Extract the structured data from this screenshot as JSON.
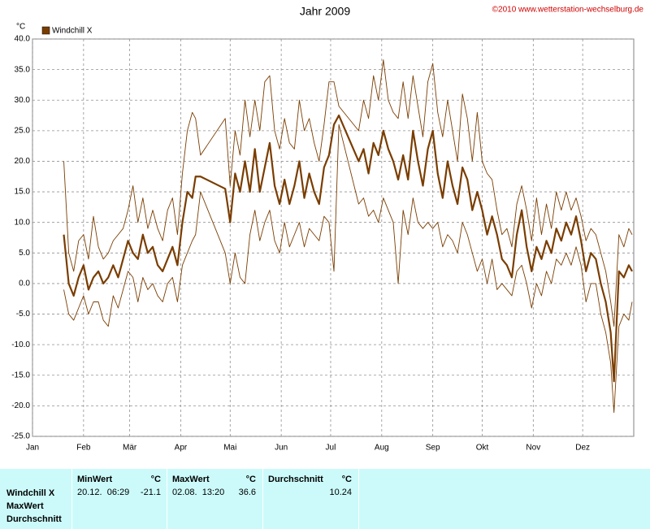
{
  "chart_data": {
    "type": "line",
    "title": "Jahr 2009",
    "copyright": "©2010 www.wetterstation-wechselburg.de",
    "y_unit": "°C",
    "legend": "top-left",
    "grid": true,
    "xlim": [
      0,
      365
    ],
    "xticks": [
      {
        "value": 0,
        "label": "Jan"
      },
      {
        "value": 31,
        "label": "Feb"
      },
      {
        "value": 59,
        "label": "Mär"
      },
      {
        "value": 90,
        "label": "Apr"
      },
      {
        "value": 120,
        "label": "Mai"
      },
      {
        "value": 151,
        "label": "Jun"
      },
      {
        "value": 181,
        "label": "Jul"
      },
      {
        "value": 212,
        "label": "Aug"
      },
      {
        "value": 243,
        "label": "Sep"
      },
      {
        "value": 273,
        "label": "Okt"
      },
      {
        "value": 304,
        "label": "Nov"
      },
      {
        "value": 334,
        "label": "Dez"
      }
    ],
    "ylim": [
      -25,
      40
    ],
    "yticks": [
      {
        "value": -25,
        "label": "-25.0"
      },
      {
        "value": -20,
        "label": "-20.0"
      },
      {
        "value": -15,
        "label": "-15.0"
      },
      {
        "value": -10,
        "label": "-10.0"
      },
      {
        "value": -5,
        "label": "-5.0"
      },
      {
        "value": 0,
        "label": "0.0"
      },
      {
        "value": 5,
        "label": "5.0"
      },
      {
        "value": 10,
        "label": "10.0"
      },
      {
        "value": 15,
        "label": "15.0"
      },
      {
        "value": 20,
        "label": "20.0"
      },
      {
        "value": 25,
        "label": "25.0"
      },
      {
        "value": 30,
        "label": "30.0"
      },
      {
        "value": 35,
        "label": "35.0"
      },
      {
        "value": 40,
        "label": "40.0"
      }
    ],
    "x": [
      19,
      22,
      25,
      28,
      31,
      34,
      37,
      40,
      43,
      46,
      49,
      52,
      55,
      58,
      61,
      64,
      67,
      70,
      73,
      76,
      79,
      82,
      85,
      88,
      91,
      94,
      97,
      99,
      102,
      117,
      120,
      123,
      126,
      129,
      132,
      135,
      138,
      141,
      144,
      147,
      150,
      153,
      156,
      159,
      162,
      165,
      168,
      171,
      174,
      177,
      180,
      183,
      186,
      198,
      201,
      204,
      207,
      210,
      213,
      216,
      219,
      222,
      225,
      228,
      231,
      234,
      237,
      240,
      243,
      246,
      249,
      252,
      255,
      258,
      261,
      264,
      267,
      270,
      273,
      276,
      279,
      282,
      285,
      288,
      291,
      294,
      297,
      300,
      303,
      306,
      309,
      312,
      315,
      318,
      321,
      324,
      327,
      330,
      333,
      336,
      339,
      342,
      345,
      348,
      351,
      353,
      356,
      359,
      362,
      364
    ],
    "series": [
      {
        "name": "Windchill X",
        "color": "#7a3d00",
        "width": 2.2,
        "values": [
          8,
          0,
          -2,
          1,
          3,
          -1,
          1,
          2,
          0,
          1,
          3,
          1,
          4,
          7,
          5,
          4,
          8,
          5,
          6,
          3,
          2,
          4,
          6,
          3,
          10,
          15,
          14,
          17.5,
          17.5,
          15.5,
          10,
          18,
          15,
          20,
          15,
          22,
          15,
          19,
          23,
          16,
          13,
          17,
          13,
          16,
          20,
          14,
          18,
          15,
          13,
          19,
          21,
          26,
          27.5,
          20,
          22,
          18,
          23,
          21,
          25,
          22,
          20,
          17,
          21,
          17,
          25,
          20,
          16,
          22,
          25,
          18,
          14,
          20,
          16,
          13,
          19,
          17,
          12,
          15,
          12,
          8,
          11,
          8,
          4,
          3,
          1,
          8,
          12,
          6,
          2,
          6,
          4,
          7,
          5,
          9,
          7,
          10,
          8,
          11,
          7,
          2,
          5,
          4,
          0,
          -3,
          -8,
          -16,
          2,
          1,
          3,
          2
        ]
      },
      {
        "color": "#7a3d00",
        "width": 0.9,
        "values": [
          20,
          5,
          2,
          7,
          8,
          4,
          11,
          6,
          4,
          5,
          7,
          8,
          9,
          12,
          16,
          10,
          14,
          9,
          12,
          9,
          7,
          12,
          14,
          8,
          18,
          25,
          28,
          27,
          21,
          27,
          16,
          25,
          21,
          30,
          24,
          30,
          25,
          33,
          34,
          25,
          22,
          27,
          23,
          22,
          30,
          25,
          27,
          23,
          20,
          26,
          33,
          33,
          29,
          25,
          30,
          27,
          34,
          30,
          36.6,
          30,
          28,
          27,
          33,
          27,
          34,
          29,
          24,
          33,
          36,
          28,
          24,
          30,
          25,
          20,
          31,
          27,
          20,
          28,
          20,
          18,
          17,
          12,
          8,
          9,
          6,
          13,
          16,
          12,
          7,
          14,
          8,
          13,
          9,
          15,
          12,
          15,
          12,
          14,
          11,
          7,
          9,
          8,
          5,
          2,
          -3,
          -7,
          8,
          6,
          9,
          8
        ]
      },
      {
        "color": "#7a3d00",
        "width": 0.9,
        "values": [
          -1,
          -5,
          -6,
          -4,
          -2,
          -5,
          -3,
          -3,
          -6,
          -7,
          -2,
          -4,
          -1,
          2,
          1,
          -3,
          1,
          -1,
          0,
          -2,
          -3,
          0,
          1,
          -3,
          3,
          5,
          7,
          8,
          15,
          5,
          0,
          5,
          1,
          0,
          8,
          12,
          7,
          10,
          12,
          7,
          5,
          10,
          6,
          8,
          10,
          6,
          9,
          8,
          7,
          11,
          10,
          2,
          26,
          13,
          14,
          11,
          12,
          10,
          14,
          12,
          10,
          0,
          12,
          8,
          14,
          10,
          9,
          10,
          9,
          10,
          6,
          8,
          7,
          5,
          10,
          8,
          5,
          2,
          4,
          0,
          4,
          -1,
          0,
          -1,
          -2,
          2,
          3,
          0,
          -4,
          0,
          -2,
          2,
          0,
          4,
          3,
          5,
          3,
          6,
          3,
          -3,
          0,
          0,
          -5,
          -8,
          -13,
          -21.1,
          -7,
          -5,
          -6,
          -3
        ]
      }
    ]
  },
  "stats": {
    "row_labels": [
      "Windchill X",
      "MaxWert",
      "Durchschnitt"
    ],
    "columns": [
      {
        "header": "MinWert",
        "unit": "°C",
        "date": "20.12.  06:29",
        "value": "-21.1"
      },
      {
        "header": "MaxWert",
        "unit": "°C",
        "date": "02.08.  13:20",
        "value": "36.6"
      },
      {
        "header": "Durchschnitt",
        "unit": "°C",
        "value": "10.24"
      }
    ]
  }
}
